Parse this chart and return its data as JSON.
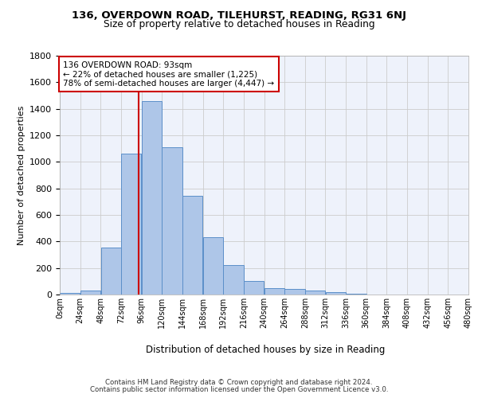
{
  "title1": "136, OVERDOWN ROAD, TILEHURST, READING, RG31 6NJ",
  "title2": "Size of property relative to detached houses in Reading",
  "xlabel": "Distribution of detached houses by size in Reading",
  "ylabel": "Number of detached properties",
  "footer1": "Contains HM Land Registry data © Crown copyright and database right 2024.",
  "footer2": "Contains public sector information licensed under the Open Government Licence v3.0.",
  "annotation_line1": "136 OVERDOWN ROAD: 93sqm",
  "annotation_line2": "← 22% of detached houses are smaller (1,225)",
  "annotation_line3": "78% of semi-detached houses are larger (4,447) →",
  "bar_values": [
    10,
    30,
    355,
    1060,
    1460,
    1110,
    745,
    435,
    220,
    105,
    50,
    40,
    28,
    18,
    8,
    3,
    2,
    1,
    1,
    0
  ],
  "bin_edges": [
    0,
    24,
    48,
    72,
    96,
    120,
    144,
    168,
    192,
    216,
    240,
    264,
    288,
    312,
    336,
    360,
    384,
    408,
    432,
    456,
    480
  ],
  "property_size": 93,
  "bar_color": "#aec6e8",
  "bar_edge_color": "#5b8fc9",
  "vline_color": "#cc0000",
  "annotation_box_color": "#cc0000",
  "background_color": "#ffffff",
  "grid_color": "#cccccc",
  "ax_facecolor": "#eef2fb",
  "ylim": [
    0,
    1800
  ],
  "yticks": [
    0,
    200,
    400,
    600,
    800,
    1000,
    1200,
    1400,
    1600,
    1800
  ]
}
